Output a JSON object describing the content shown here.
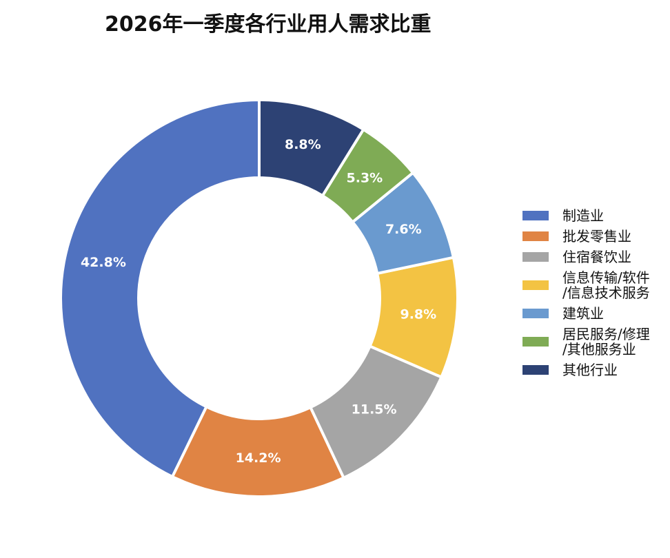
{
  "chart_data": {
    "type": "pie",
    "title": "2026年一季度各行业用人需求比重",
    "donut": true,
    "legend_position": "right",
    "categories": [
      "制造业",
      "批发零售业",
      "住宿餐饮业",
      "信息传输/软件\n/信息技术服务",
      "建筑业",
      "居民服务/修理\n/其他服务业",
      "其他行业"
    ],
    "values": [
      42.8,
      14.2,
      11.5,
      9.8,
      7.6,
      5.3,
      8.8
    ],
    "value_labels": [
      "42.8%",
      "14.2%",
      "11.5%",
      "9.8%",
      "7.6%",
      "5.3%",
      "8.8%"
    ],
    "colors": [
      "#5072C0",
      "#E08444",
      "#A5A5A5",
      "#F3C343",
      "#6A9ACF",
      "#7FAB55",
      "#2D4274"
    ]
  }
}
